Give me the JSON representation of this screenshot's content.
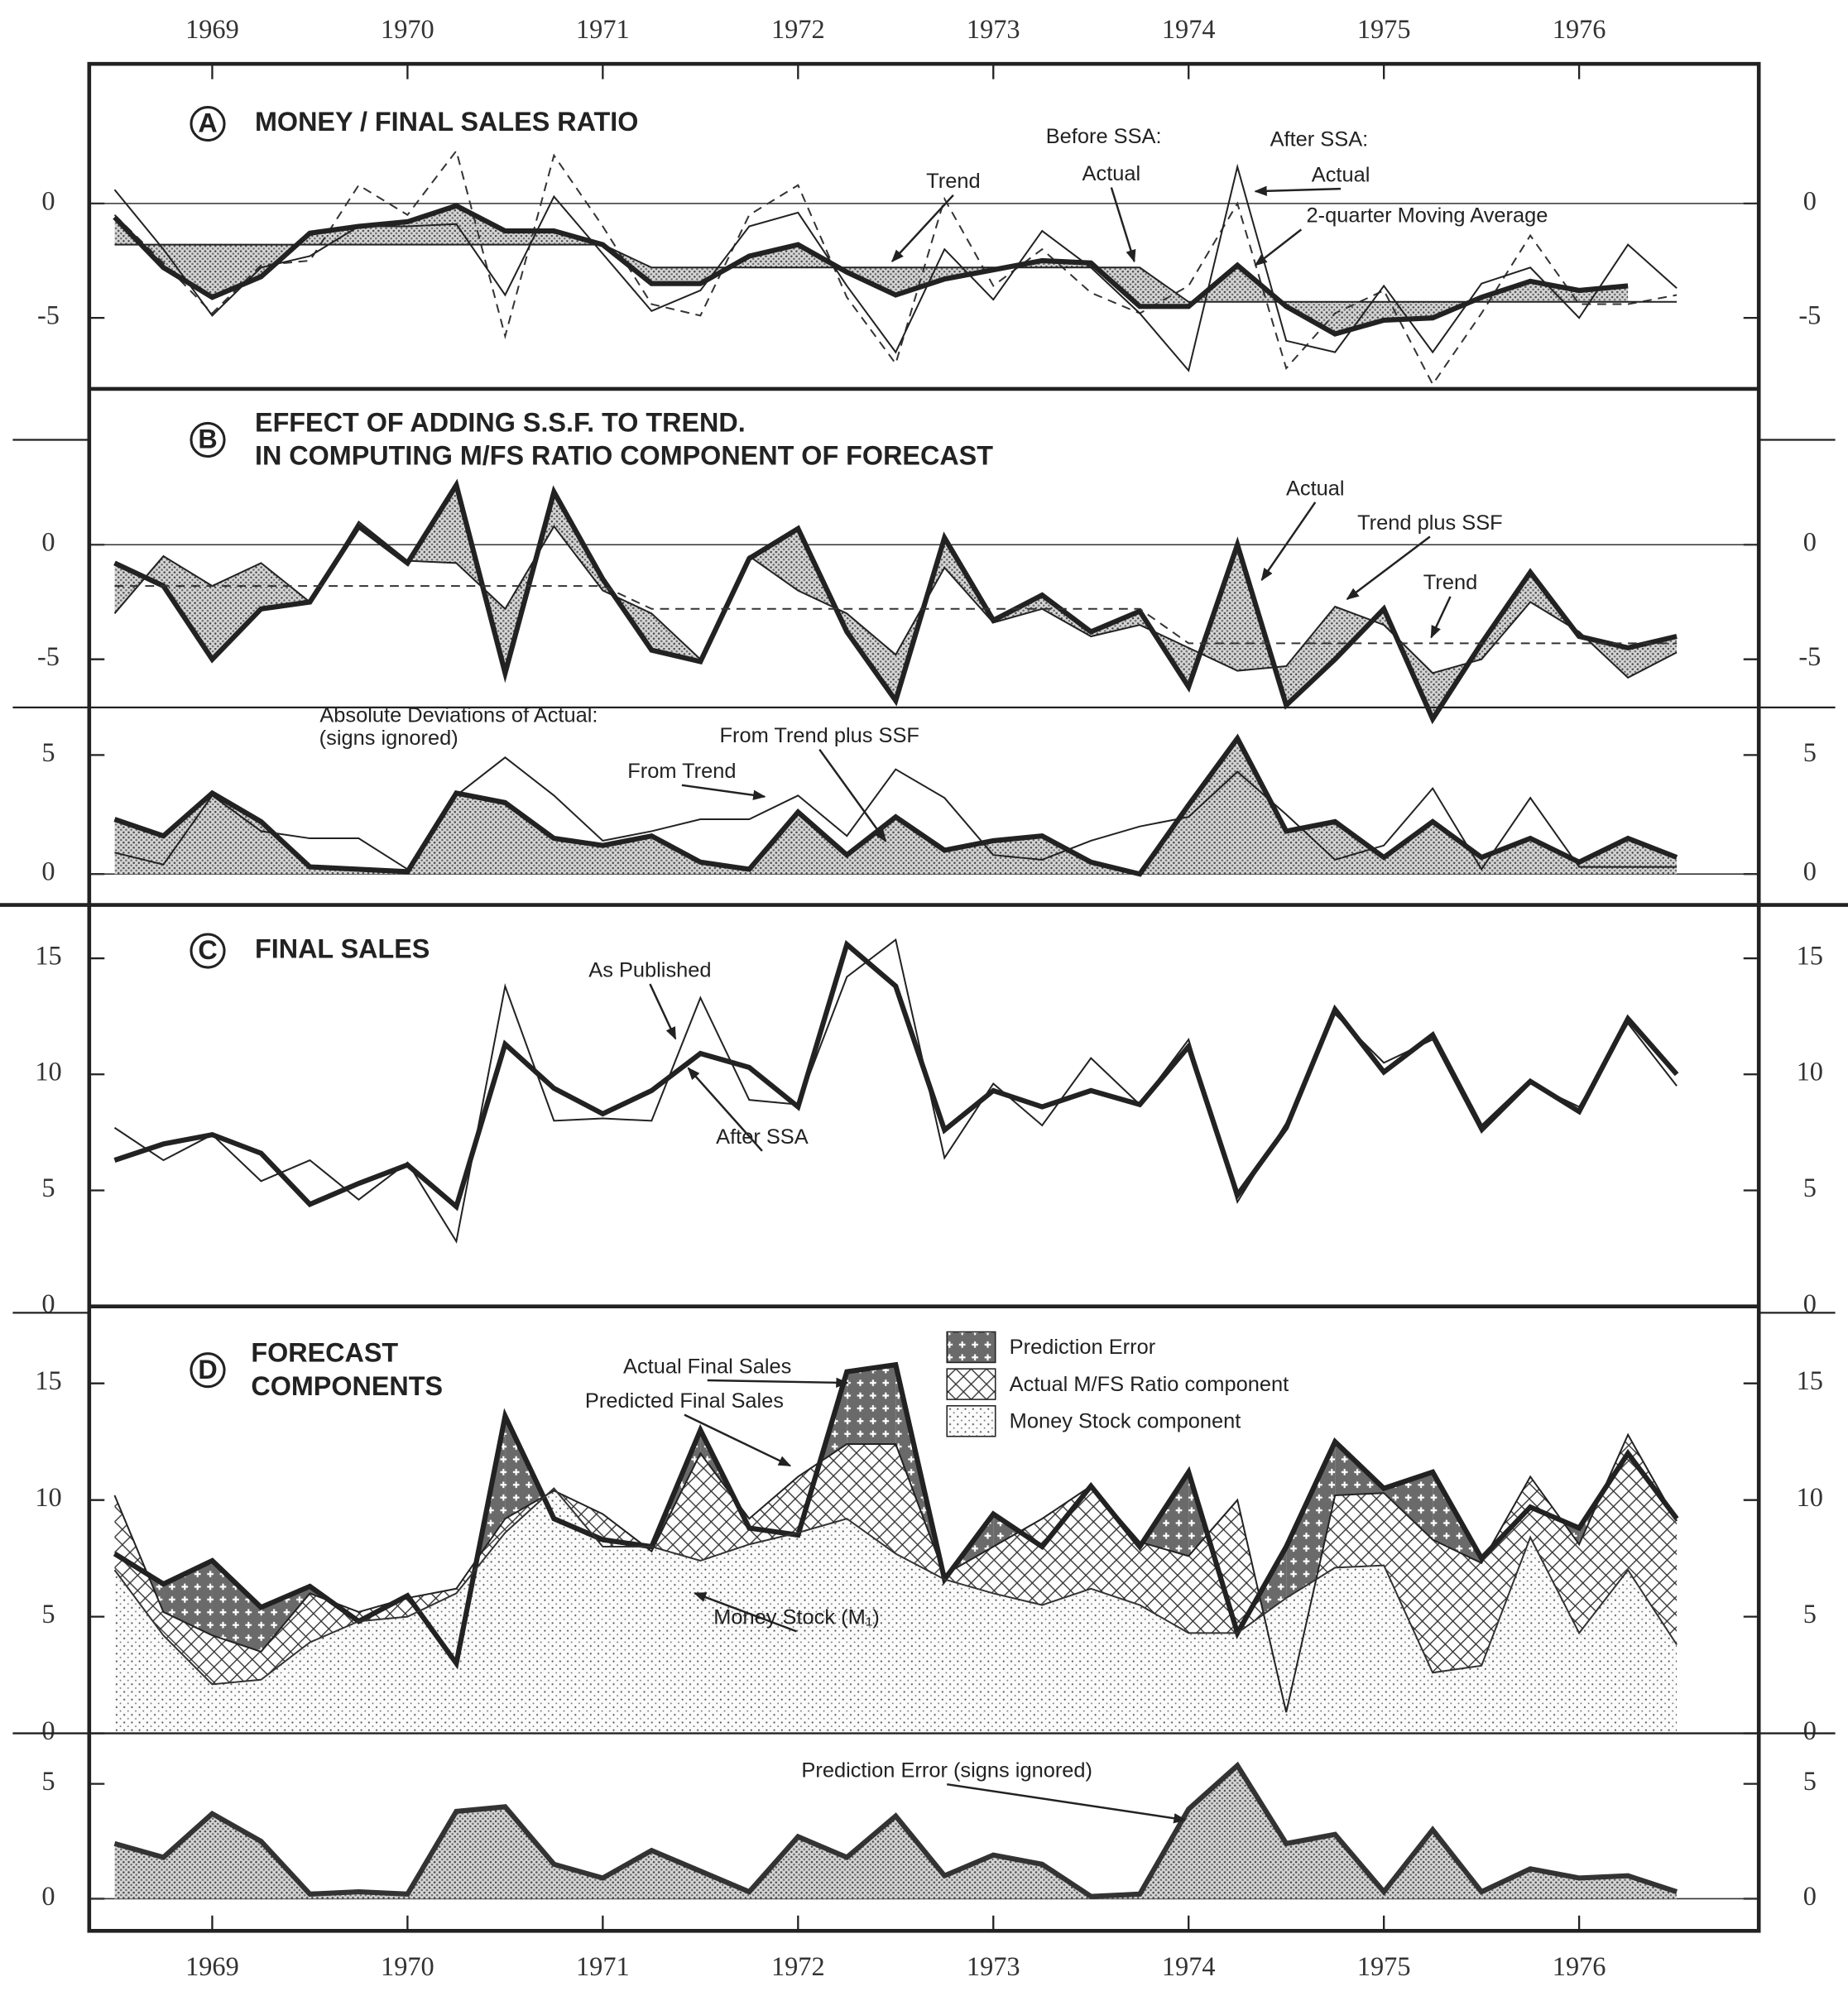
{
  "chart_data": [
    {
      "type": "line",
      "panel": "A",
      "title": "MONEY / FINAL SALES RATIO",
      "annotations": [
        "Before SSA:",
        "After SSA:"
      ],
      "x": [
        1969,
        1969.25,
        1969.5,
        1969.75,
        1970,
        1970.25,
        1970.5,
        1970.75,
        1971,
        1971.25,
        1971.5,
        1971.75,
        1972,
        1972.25,
        1972.5,
        1972.75,
        1973,
        1973.25,
        1973.5,
        1973.75,
        1974,
        1974.25,
        1974.5,
        1974.75,
        1975,
        1975.25,
        1975.5,
        1975.75,
        1976,
        1976.25,
        1976.5,
        1976.75,
        1977
      ],
      "xlim": [
        1968.87,
        1977.42
      ],
      "xticks": [
        {
          "value": 1969.5,
          "label": "1969"
        },
        {
          "value": 1970.5,
          "label": "1970"
        },
        {
          "value": 1971.5,
          "label": "1971"
        },
        {
          "value": 1972.5,
          "label": "1972"
        },
        {
          "value": 1973.5,
          "label": "1973"
        },
        {
          "value": 1974.5,
          "label": "1974"
        },
        {
          "value": 1975.5,
          "label": "1975"
        },
        {
          "value": 1976.5,
          "label": "1976"
        }
      ],
      "ylim": [
        -8.1,
        6.1
      ],
      "yticks": [
        -5,
        0
      ],
      "zero_line": true,
      "series": [
        {
          "name": "Actual",
          "color": "#333333",
          "style": "dashed",
          "values": [
            -0.5,
            -2.6,
            -4.8,
            -2.7,
            -2.5,
            0.8,
            -0.5,
            2.3,
            -5.8,
            2.1,
            -1.0,
            -4.4,
            -4.9,
            -0.5,
            0.8,
            -4.1,
            -7.0,
            0.2,
            -3.6,
            -2.0,
            -3.9,
            -4.8,
            -3.6,
            0.0,
            -7.2,
            -4.8,
            -3.8,
            -7.9,
            -4.8,
            -1.4,
            -4.4,
            -4.4,
            -4.0
          ]
        },
        {
          "name": "Actual",
          "color": "#222222",
          "values": [
            0.6,
            -2.0,
            -4.9,
            -2.8,
            -2.3,
            -1.0,
            -1.0,
            -0.9,
            -4.0,
            0.3,
            -2.2,
            -4.7,
            -3.8,
            -1.0,
            -0.4,
            -3.6,
            -6.5,
            -2.0,
            -4.2,
            -1.2,
            -2.8,
            -4.8,
            -7.3,
            1.6,
            -6.0,
            -6.5,
            -3.6,
            -6.5,
            -3.5,
            -2.8,
            -5.0,
            -1.8,
            -3.7
          ]
        },
        {
          "name": "2-quarter Moving Average",
          "color": "#222222",
          "weight": "heavy",
          "values": [
            -0.6,
            -2.8,
            -4.1,
            -3.2,
            -1.3,
            -1.0,
            -0.8,
            -0.1,
            -1.2,
            -1.2,
            -1.8,
            -3.5,
            -3.5,
            -2.3,
            -1.8,
            -3.0,
            -4.0,
            -3.3,
            -2.9,
            -2.5,
            -2.6,
            -4.5,
            -4.5,
            -2.7,
            -4.5,
            -5.7,
            -5.1,
            -5.0,
            -4.1,
            -3.4,
            -3.8,
            -3.6,
            null
          ]
        },
        {
          "name": "Trend",
          "color": "#222222",
          "values": [
            -1.8,
            -1.8,
            -1.8,
            -1.8,
            -1.8,
            -1.8,
            -1.8,
            -1.8,
            -1.8,
            -1.8,
            -1.8,
            -2.8,
            -2.8,
            -2.8,
            -2.8,
            -2.8,
            -2.8,
            -2.8,
            -2.8,
            -2.8,
            -2.8,
            -2.8,
            -4.3,
            -4.3,
            -4.3,
            -4.3,
            -4.3,
            -4.3,
            -4.3,
            -4.3,
            -4.3,
            -4.3,
            -4.3
          ]
        }
      ]
    },
    {
      "type": "line",
      "panel": "B",
      "title": "EFFECT OF ADDING S.S.F. TO TREND.",
      "subtitle": "IN COMPUTING M/FS RATIO COMPONENT OF FORECAST",
      "x": [
        1969,
        1969.25,
        1969.5,
        1969.75,
        1970,
        1970.25,
        1970.5,
        1970.75,
        1971,
        1971.25,
        1971.5,
        1971.75,
        1972,
        1972.25,
        1972.5,
        1972.75,
        1973,
        1973.25,
        1973.5,
        1973.75,
        1974,
        1974.25,
        1974.5,
        1974.75,
        1975,
        1975.25,
        1975.5,
        1975.75,
        1976,
        1976.25,
        1976.5,
        1976.75,
        1977
      ],
      "xlim": [
        1968.87,
        1977.42
      ],
      "ylim": [
        -7.1,
        6.8
      ],
      "yticks": [
        -5,
        0
      ],
      "zero_line": true,
      "series": [
        {
          "name": "Actual",
          "color": "#222222",
          "weight": "heavy",
          "values": [
            -0.8,
            -1.8,
            -5.0,
            -2.8,
            -2.5,
            0.8,
            -0.8,
            2.6,
            -5.6,
            2.3,
            -1.5,
            -4.6,
            -5.1,
            -0.6,
            0.7,
            -3.8,
            -6.8,
            0.3,
            -3.3,
            -2.2,
            -3.8,
            -2.9,
            -6.2,
            0.0,
            -7.0,
            -5.0,
            -2.8,
            -7.6,
            -4.3,
            -1.2,
            -4.0,
            -4.5,
            -4.0
          ]
        },
        {
          "name": "Trend plus SSF",
          "color": "#222222",
          "values": [
            -3.0,
            -0.5,
            -1.8,
            -0.8,
            -2.5,
            1.0,
            -0.7,
            -0.8,
            -2.8,
            0.8,
            -2.0,
            -3.0,
            -5.0,
            -0.5,
            -2.0,
            -3.0,
            -4.8,
            -1.0,
            -3.4,
            -2.8,
            -4.0,
            -3.5,
            -4.5,
            -5.5,
            -5.3,
            -2.7,
            -3.5,
            -5.6,
            -5.0,
            -2.5,
            -3.8,
            -5.8,
            -4.7
          ]
        },
        {
          "name": "Trend",
          "color": "#333333",
          "style": "dashed",
          "values": [
            -1.8,
            -1.8,
            -1.8,
            -1.8,
            -1.8,
            -1.8,
            -1.8,
            -1.8,
            -1.8,
            -1.8,
            -1.8,
            -2.8,
            -2.8,
            -2.8,
            -2.8,
            -2.8,
            -2.8,
            -2.8,
            -2.8,
            -2.8,
            -2.8,
            -2.8,
            -4.3,
            -4.3,
            -4.3,
            -4.3,
            -4.3,
            -4.3,
            -4.3,
            -4.3,
            -4.3,
            -4.3,
            -4.3
          ]
        }
      ]
    },
    {
      "type": "line",
      "annotations": [
        "Absolute Deviations of Actual:",
        "(signs ignored)"
      ],
      "x": [
        1969,
        1969.25,
        1969.5,
        1969.75,
        1970,
        1970.25,
        1970.5,
        1970.75,
        1971,
        1971.25,
        1971.5,
        1971.75,
        1972,
        1972.25,
        1972.5,
        1972.75,
        1973,
        1973.25,
        1973.5,
        1973.75,
        1974,
        1974.25,
        1974.5,
        1974.75,
        1975,
        1975.25,
        1975.5,
        1975.75,
        1976,
        1976.25,
        1976.5,
        1976.75,
        1977
      ],
      "xlim": [
        1968.87,
        1977.42
      ],
      "ylim": [
        -1.3,
        7
      ],
      "yticks": [
        0,
        5
      ],
      "zero_line": true,
      "series": [
        {
          "name": "From Trend plus SSF",
          "color": "#222222",
          "weight": "heavy",
          "values": [
            2.3,
            1.6,
            3.4,
            2.2,
            0.3,
            0.2,
            0.1,
            3.4,
            3.0,
            1.5,
            1.2,
            1.6,
            0.5,
            0.2,
            2.6,
            0.8,
            2.4,
            1.0,
            1.4,
            1.6,
            0.5,
            0.0,
            2.9,
            5.7,
            1.8,
            2.2,
            0.7,
            2.2,
            0.7,
            1.5,
            0.5,
            1.5,
            0.7
          ]
        },
        {
          "name": "From Trend",
          "color": "#222222",
          "values": [
            0.9,
            0.4,
            3.3,
            1.8,
            1.5,
            1.5,
            0.2,
            3.3,
            4.9,
            3.3,
            1.4,
            1.8,
            2.3,
            2.3,
            3.3,
            1.6,
            4.4,
            3.2,
            0.8,
            0.6,
            1.4,
            2.0,
            2.4,
            4.3,
            2.5,
            0.6,
            1.2,
            3.6,
            0.2,
            3.2,
            0.3,
            0.3,
            0.3
          ]
        }
      ]
    },
    {
      "type": "line",
      "panel": "C",
      "title": "FINAL SALES",
      "x": [
        1969,
        1969.25,
        1969.5,
        1969.75,
        1970,
        1970.25,
        1970.5,
        1970.75,
        1971,
        1971.25,
        1971.5,
        1971.75,
        1972,
        1972.25,
        1972.5,
        1972.75,
        1973,
        1973.25,
        1973.5,
        1973.75,
        1974,
        1974.25,
        1974.5,
        1974.75,
        1975,
        1975.25,
        1975.5,
        1975.75,
        1976,
        1976.25,
        1976.5,
        1976.75,
        1977
      ],
      "xlim": [
        1968.87,
        1977.42
      ],
      "ylim": [
        0,
        17.3
      ],
      "yticks": [
        0,
        5,
        10,
        15
      ],
      "series": [
        {
          "name": "As Published",
          "color": "#222222",
          "values": [
            7.7,
            6.3,
            7.4,
            5.4,
            6.3,
            4.6,
            6.2,
            2.8,
            13.8,
            8.0,
            8.1,
            8.0,
            13.3,
            8.9,
            8.7,
            14.2,
            15.8,
            6.4,
            9.6,
            7.8,
            10.7,
            8.7,
            11.5,
            4.5,
            7.9,
            12.6,
            10.5,
            11.5,
            7.5,
            9.6,
            8.6,
            12.2,
            9.5
          ]
        },
        {
          "name": "After SSA",
          "color": "#222222",
          "weight": "heavy",
          "values": [
            6.3,
            7.0,
            7.4,
            6.6,
            4.4,
            5.3,
            6.1,
            4.3,
            11.3,
            9.4,
            8.3,
            9.3,
            10.9,
            10.3,
            8.6,
            15.6,
            13.8,
            7.6,
            9.3,
            8.6,
            9.3,
            8.7,
            11.2,
            4.8,
            7.7,
            12.8,
            10.1,
            11.7,
            7.7,
            9.7,
            8.4,
            12.4,
            10.0
          ]
        }
      ]
    },
    {
      "type": "line",
      "panel": "D",
      "title": "FORECAST",
      "subtitle": "COMPONENTS",
      "legend": [
        {
          "name": "Prediction Error",
          "pattern": "dense"
        },
        {
          "name": "Actual M/FS Ratio component",
          "pattern": "crosshatch"
        },
        {
          "name": "Money Stock component",
          "pattern": "dots"
        }
      ],
      "x": [
        1969,
        1969.25,
        1969.5,
        1969.75,
        1970,
        1970.25,
        1970.5,
        1970.75,
        1971,
        1971.25,
        1971.5,
        1971.75,
        1972,
        1972.25,
        1972.5,
        1972.75,
        1973,
        1973.25,
        1973.5,
        1973.75,
        1974,
        1974.25,
        1974.5,
        1974.75,
        1975,
        1975.25,
        1975.5,
        1975.75,
        1976,
        1976.25,
        1976.5,
        1976.75,
        1977
      ],
      "xlim": [
        1968.87,
        1977.42
      ],
      "ylim": [
        0,
        18.3
      ],
      "yticks": [
        0,
        5,
        10,
        15
      ],
      "series": [
        {
          "name": "Actual Final Sales",
          "color": "#222222",
          "weight": "heavy",
          "values": [
            7.7,
            6.4,
            7.4,
            5.4,
            6.3,
            4.8,
            5.9,
            3.0,
            13.6,
            9.2,
            8.3,
            8.0,
            13.0,
            8.8,
            8.5,
            15.5,
            15.8,
            6.6,
            9.4,
            8.0,
            10.6,
            8.0,
            11.2,
            4.3,
            8.0,
            12.5,
            10.5,
            11.2,
            7.5,
            9.7,
            8.8,
            12.0,
            9.2
          ]
        },
        {
          "name": "Predicted Final Sales",
          "color": "#222222",
          "values": [
            10.2,
            5.2,
            4.2,
            3.5,
            6.0,
            5.2,
            5.8,
            6.2,
            9.2,
            10.4,
            9.4,
            7.8,
            12.0,
            9.2,
            11.0,
            12.4,
            12.4,
            6.8,
            8.0,
            9.2,
            10.6,
            8.2,
            7.6,
            10.0,
            0.9,
            10.2,
            10.3,
            8.3,
            7.3,
            11.0,
            8.1,
            12.8,
            9.1
          ]
        },
        {
          "name": "Money Stock (M₁)",
          "color": "#333333",
          "values": [
            7.0,
            4.2,
            2.1,
            2.3,
            3.9,
            4.8,
            5.0,
            6.0,
            8.6,
            10.5,
            8.0,
            8.0,
            7.4,
            8.1,
            8.6,
            9.2,
            7.7,
            6.6,
            6.0,
            5.5,
            6.2,
            5.5,
            4.3,
            4.3,
            5.8,
            7.1,
            7.2,
            2.6,
            2.9,
            8.4,
            4.3,
            7.0,
            3.8
          ]
        }
      ]
    },
    {
      "type": "area",
      "x": [
        1969,
        1969.25,
        1969.5,
        1969.75,
        1970,
        1970.25,
        1970.5,
        1970.75,
        1971,
        1971.25,
        1971.5,
        1971.75,
        1972,
        1972.25,
        1972.5,
        1972.75,
        1973,
        1973.25,
        1973.5,
        1973.75,
        1974,
        1974.25,
        1974.5,
        1974.75,
        1975,
        1975.25,
        1975.5,
        1975.75,
        1976,
        1976.25,
        1976.5,
        1976.75,
        1977
      ],
      "xlim": [
        1968.87,
        1977.42
      ],
      "xticks": [
        {
          "value": 1969.5,
          "label": "1969"
        },
        {
          "value": 1970.5,
          "label": "1970"
        },
        {
          "value": 1971.5,
          "label": "1971"
        },
        {
          "value": 1972.5,
          "label": "1972"
        },
        {
          "value": 1973.5,
          "label": "1973"
        },
        {
          "value": 1974.5,
          "label": "1974"
        },
        {
          "value": 1975.5,
          "label": "1975"
        },
        {
          "value": 1976.5,
          "label": "1976"
        }
      ],
      "ylim": [
        -1.4,
        7.2
      ],
      "yticks": [
        0,
        5
      ],
      "zero_line": true,
      "series": [
        {
          "name": "Prediction Error (signs ignored)",
          "color": "#333333",
          "weight": "heavy",
          "values": [
            2.4,
            1.8,
            3.7,
            2.5,
            0.2,
            0.3,
            0.2,
            3.8,
            4.0,
            1.5,
            0.9,
            2.1,
            1.2,
            0.3,
            2.7,
            1.8,
            3.6,
            1.0,
            1.9,
            1.5,
            0.1,
            0.2,
            3.9,
            5.8,
            2.4,
            2.8,
            0.3,
            3.0,
            0.3,
            1.3,
            0.9,
            1.0,
            0.3
          ]
        }
      ]
    }
  ]
}
